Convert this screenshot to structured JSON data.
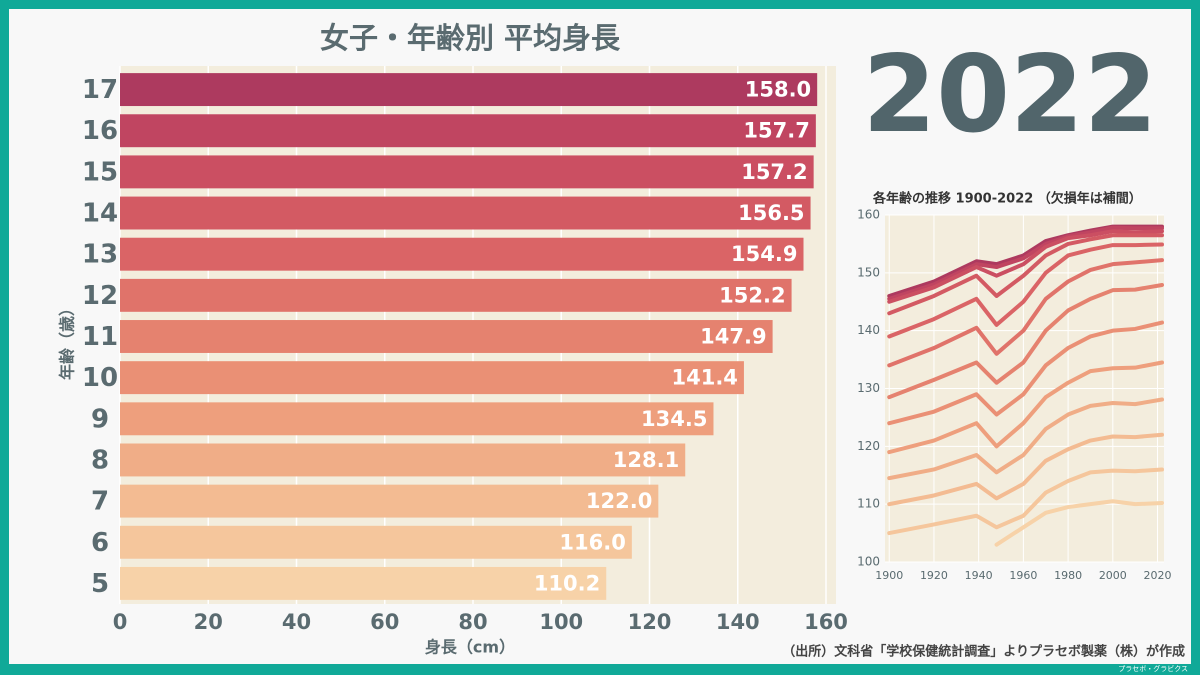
{
  "chart_data": [
    {
      "type": "barh",
      "title": "女子・年齢別 平均身長",
      "x_label": "身長（cm）",
      "y_label": "年齢（歳）",
      "categories": [
        "17",
        "16",
        "15",
        "14",
        "13",
        "12",
        "11",
        "10",
        "9",
        "8",
        "7",
        "6",
        "5"
      ],
      "values": [
        158.0,
        157.7,
        157.2,
        156.5,
        154.9,
        152.2,
        147.9,
        141.4,
        134.5,
        128.1,
        122.0,
        116.0,
        110.2
      ],
      "value_labels": [
        "158.0",
        "157.7",
        "157.2",
        "156.5",
        "154.9",
        "152.2",
        "147.9",
        "141.4",
        "134.5",
        "128.1",
        "122.0",
        "116.0",
        "110.2"
      ],
      "colors": [
        "#ad3a5f",
        "#c04561",
        "#cb4f62",
        "#d35a63",
        "#da6466",
        "#e0736a",
        "#e5826f",
        "#ea9075",
        "#ee9f7d",
        "#f0ad87",
        "#f3bb92",
        "#f5c69c",
        "#f7d2a8"
      ],
      "xlim": [
        0,
        160
      ],
      "xticks": [
        0,
        20,
        40,
        60,
        80,
        100,
        120,
        140,
        160
      ],
      "grid": true
    },
    {
      "type": "line",
      "title": "各年齢の推移 1900-2022 （欠損年は補間）",
      "x": [
        1900,
        1920,
        1939,
        1948,
        1960,
        1970,
        1980,
        1990,
        2000,
        2010,
        2022
      ],
      "series": [
        {
          "name": "17",
          "color": "#ad3a5f",
          "values": [
            146,
            148.5,
            152,
            151.5,
            153,
            155.5,
            156.5,
            157.3,
            158,
            158,
            158.0
          ]
        },
        {
          "name": "16",
          "color": "#c04561",
          "values": [
            145.5,
            148,
            151.5,
            151,
            152.5,
            155,
            156.3,
            157,
            157.8,
            157.7,
            157.7
          ]
        },
        {
          "name": "15",
          "color": "#cb4f62",
          "values": [
            145,
            147.5,
            151,
            149.5,
            151.5,
            154.5,
            156,
            156.5,
            157.2,
            157,
            157.2
          ]
        },
        {
          "name": "14",
          "color": "#d35a63",
          "values": [
            143,
            146,
            149.5,
            146,
            149.5,
            153,
            155,
            155.8,
            156.5,
            156.5,
            156.5
          ]
        },
        {
          "name": "13",
          "color": "#da6466",
          "values": [
            139,
            142,
            145.5,
            141,
            145,
            150,
            153,
            154,
            154.8,
            154.8,
            154.9
          ]
        },
        {
          "name": "12",
          "color": "#e0736a",
          "values": [
            134,
            137,
            140.5,
            136,
            140,
            145.5,
            148.5,
            150.5,
            151.5,
            151.8,
            152.2
          ]
        },
        {
          "name": "11",
          "color": "#e5826f",
          "values": [
            128.5,
            131.5,
            134.5,
            131,
            134.5,
            140,
            143.5,
            145.5,
            147,
            147.1,
            147.9
          ]
        },
        {
          "name": "10",
          "color": "#ea9075",
          "values": [
            124,
            126,
            129,
            125.5,
            129,
            134,
            137,
            139,
            140,
            140.3,
            141.4
          ]
        },
        {
          "name": "9",
          "color": "#ee9f7d",
          "values": [
            119,
            121,
            124,
            120,
            124,
            128.5,
            131,
            133,
            133.5,
            133.6,
            134.5
          ]
        },
        {
          "name": "8",
          "color": "#f0ad87",
          "values": [
            114.5,
            116,
            118.5,
            115.5,
            118.5,
            123,
            125.5,
            127,
            127.5,
            127.3,
            128.1
          ]
        },
        {
          "name": "7",
          "color": "#f3bb92",
          "values": [
            110,
            111.5,
            113.5,
            111,
            113.5,
            117.5,
            119.5,
            121,
            121.7,
            121.6,
            122.0
          ]
        },
        {
          "name": "6",
          "color": "#f5c69c",
          "values": [
            105,
            106.5,
            108,
            106,
            108,
            112,
            114,
            115.5,
            115.8,
            115.7,
            116.0
          ]
        },
        {
          "name": "5",
          "color": "#f7d2a8",
          "values": [
            null,
            null,
            null,
            103,
            106,
            108.5,
            109.5,
            110,
            110.5,
            110,
            110.2
          ]
        }
      ],
      "xlim": [
        1899,
        2022
      ],
      "xticks": [
        1900,
        1920,
        1940,
        1960,
        1980,
        2000,
        2020
      ],
      "ylim": [
        100,
        160
      ],
      "yticks": [
        100,
        110,
        120,
        130,
        140,
        150,
        160
      ],
      "grid": true
    }
  ],
  "year": "2022",
  "source": "（出所）文科省「学校保健統計調査」よりプラセボ製薬（株）が作成",
  "brand": "プラセボ・グラビクス"
}
